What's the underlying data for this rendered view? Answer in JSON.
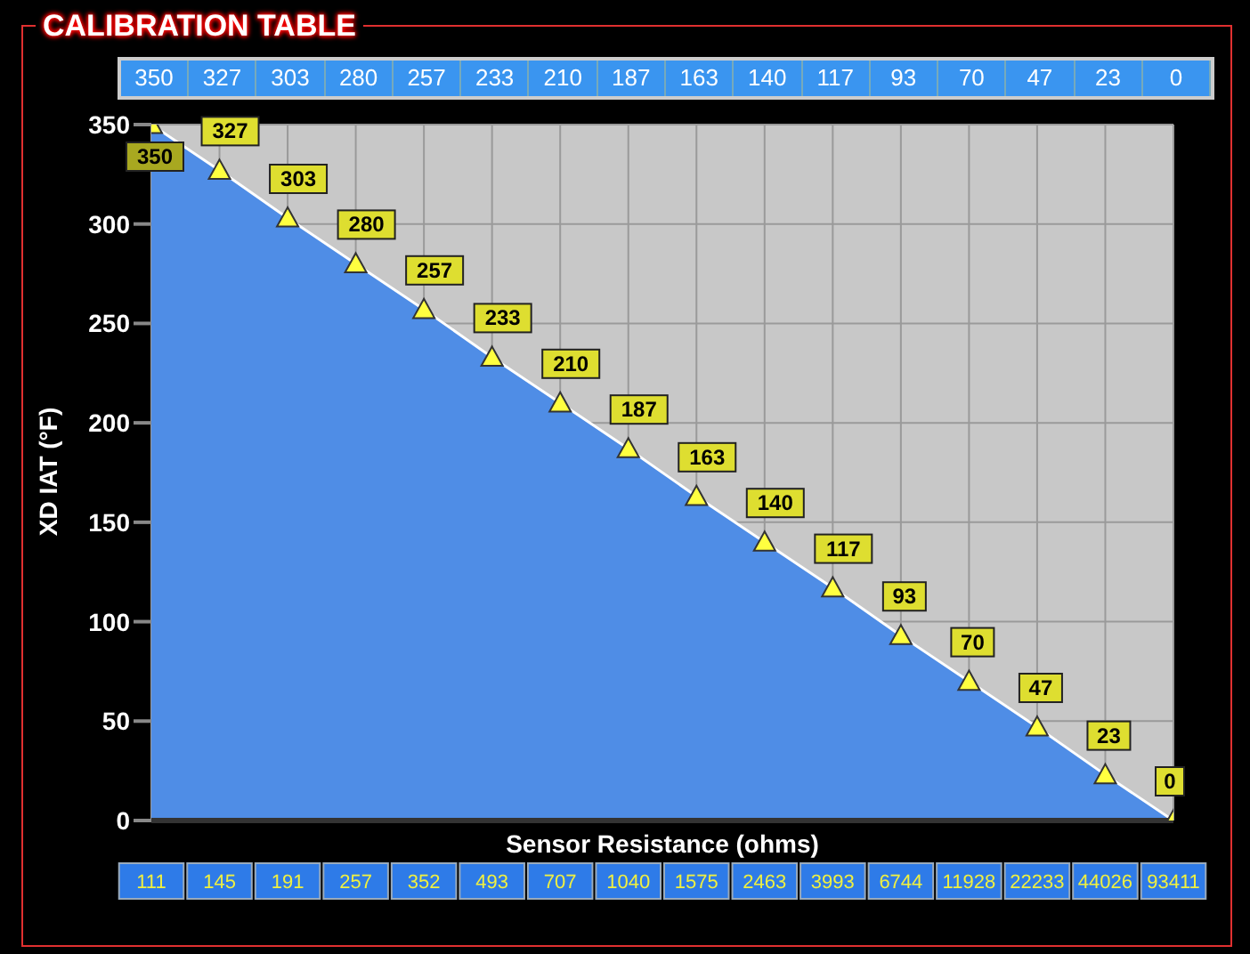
{
  "chart_data": {
    "type": "area",
    "title": "CALIBRATION TABLE",
    "xlabel": "Sensor Resistance (ohms)",
    "ylabel": "XD IAT (°F)",
    "categories": [
      "111",
      "145",
      "191",
      "257",
      "352",
      "493",
      "707",
      "1040",
      "1575",
      "2463",
      "3993",
      "6744",
      "11928",
      "22233",
      "44026",
      "93411"
    ],
    "series": [
      {
        "color": "#4f8de6",
        "values": [
          350,
          327,
          303,
          280,
          257,
          233,
          210,
          187,
          163,
          140,
          117,
          93,
          70,
          47,
          23,
          0
        ]
      }
    ],
    "annotations": [
      "350",
      "327",
      "303",
      "280",
      "257",
      "233",
      "210",
      "187",
      "163",
      "140",
      "117",
      "93",
      "70",
      "47",
      "23",
      "0"
    ],
    "ylim": [
      0,
      350
    ],
    "yticks": [
      0,
      50,
      100,
      150,
      200,
      250,
      300,
      350
    ],
    "grid": true,
    "marker": "triangle",
    "data_labels": true,
    "legend": false
  }
}
